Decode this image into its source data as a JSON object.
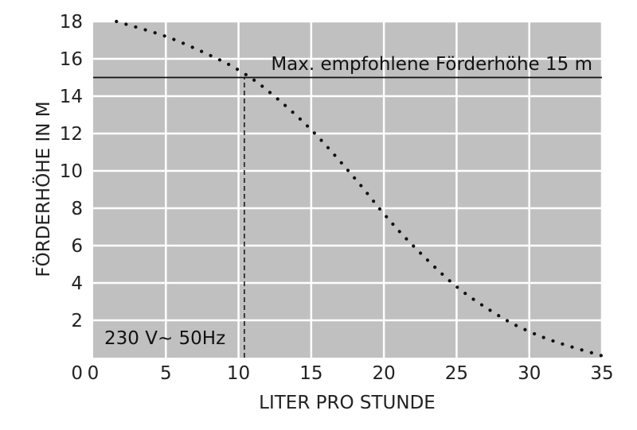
{
  "chart_data": {
    "type": "line",
    "xlabel": "LITER PRO STUNDE",
    "ylabel": "FÖRDERHÖHE IN M",
    "xlim": [
      0,
      35
    ],
    "ylim": [
      0,
      18
    ],
    "xticks": [
      0,
      5,
      10,
      15,
      20,
      25,
      30,
      35
    ],
    "yticks": [
      0,
      2,
      4,
      6,
      8,
      10,
      12,
      14,
      16,
      18
    ],
    "grid": true,
    "background": "#c0c0c0",
    "grid_color": "#ffffff",
    "series": [
      {
        "style": "dotted",
        "x": [
          1.6,
          5,
          8,
          10,
          12,
          15,
          18,
          20,
          22,
          25,
          28,
          30,
          32,
          35
        ],
        "y": [
          18.0,
          17.2,
          16.2,
          15.4,
          14.3,
          12.2,
          9.6,
          7.7,
          6.0,
          3.8,
          2.2,
          1.4,
          0.8,
          0.1
        ]
      }
    ],
    "reference_lines": [
      {
        "orientation": "horizontal",
        "y": 15,
        "style": "solid",
        "label": "Max. empfohlene Förderhöhe 15 m"
      },
      {
        "orientation": "vertical",
        "x": 10.4,
        "y_from": 0,
        "y_to": 15,
        "style": "dashed"
      }
    ],
    "annotations": [
      {
        "text": "230 V~ 50Hz",
        "position": "bottom-left"
      }
    ]
  }
}
